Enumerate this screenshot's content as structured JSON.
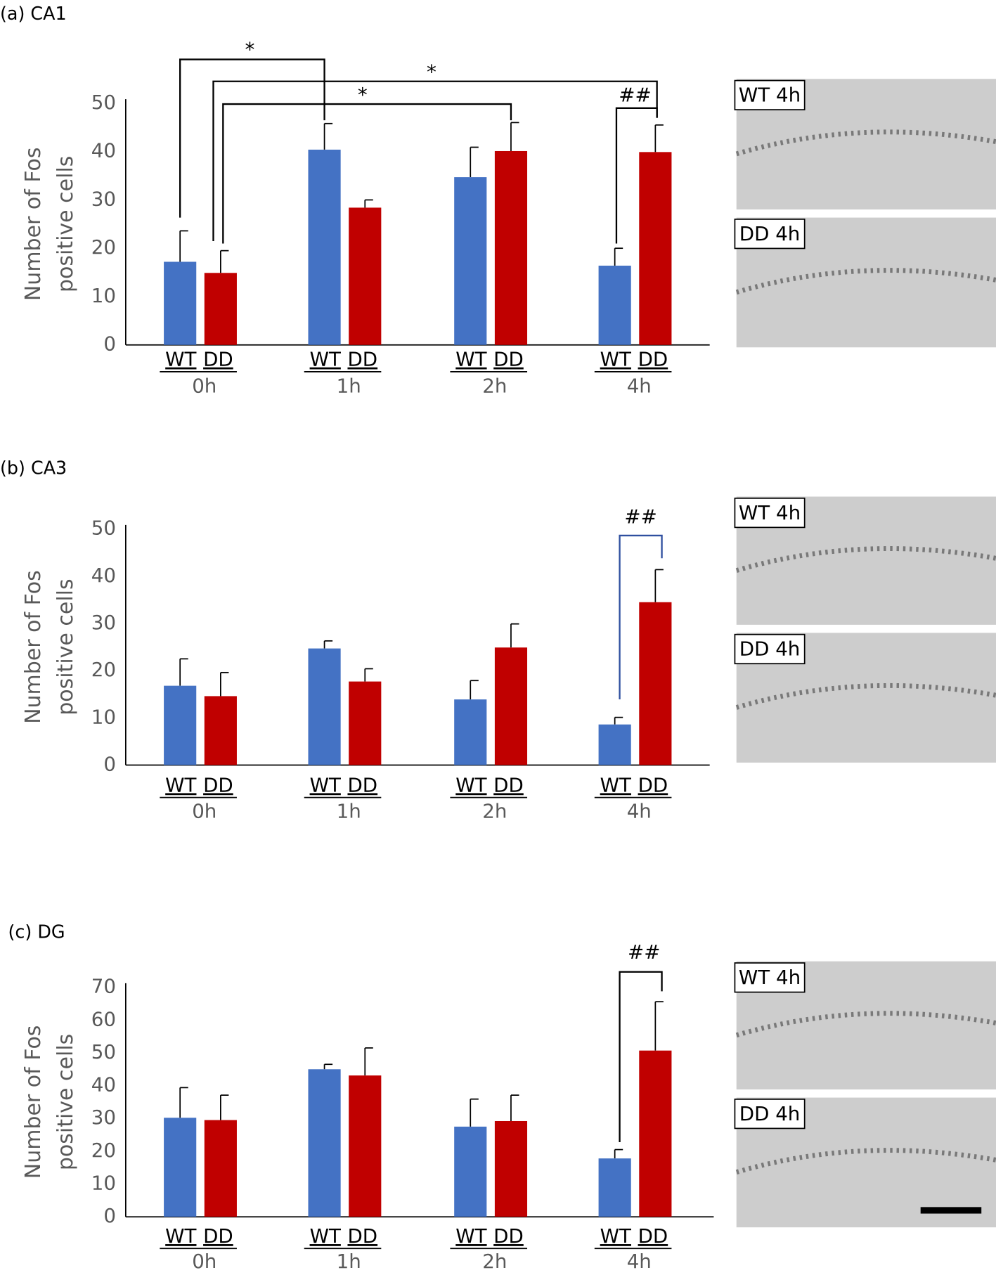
{
  "chart_data": [
    {
      "type": "bar",
      "title": "(a) CA1",
      "ylabel": [
        "Number of Fos",
        "positive cells"
      ],
      "categories": [
        "0h",
        "1h",
        "2h",
        "4h"
      ],
      "series": [
        {
          "name": "WT",
          "color": "#4472c4",
          "values": [
            17.2,
            40.4,
            34.7,
            16.4
          ],
          "errors": [
            6.4,
            5.4,
            6.2,
            3.6
          ]
        },
        {
          "name": "DD",
          "color": "#c00000",
          "values": [
            14.9,
            28.4,
            40.1,
            39.9
          ],
          "errors": [
            4.6,
            1.6,
            5.9,
            5.6
          ]
        }
      ],
      "ylim": [
        0,
        50
      ],
      "yticks": [
        0,
        10,
        20,
        30,
        40,
        50
      ],
      "annotations": [
        "*",
        "*",
        "*",
        "##"
      ],
      "image_labels": [
        "WT 4h",
        "DD 4h"
      ]
    },
    {
      "type": "bar",
      "title": "(b) CA3",
      "ylabel": [
        "Number of Fos",
        "positive cells"
      ],
      "categories": [
        "0h",
        "1h",
        "2h",
        "4h"
      ],
      "series": [
        {
          "name": "WT",
          "color": "#4472c4",
          "values": [
            16.8,
            24.7,
            13.9,
            8.6
          ],
          "errors": [
            5.7,
            1.6,
            4.0,
            1.5
          ]
        },
        {
          "name": "DD",
          "color": "#c00000",
          "values": [
            14.6,
            17.7,
            24.9,
            34.5
          ],
          "errors": [
            5.0,
            2.7,
            5.0,
            6.9
          ]
        }
      ],
      "ylim": [
        0,
        50
      ],
      "yticks": [
        0,
        10,
        20,
        30,
        40,
        50
      ],
      "annotations": [
        "##"
      ],
      "image_labels": [
        "WT 4h",
        "DD 4h"
      ]
    },
    {
      "type": "bar",
      "title": "(c) DG",
      "ylabel": [
        "Number of Fos",
        "positive cells"
      ],
      "categories": [
        "0h",
        "1h",
        "2h",
        "4h"
      ],
      "series": [
        {
          "name": "WT",
          "color": "#4472c4",
          "values": [
            30.2,
            45.0,
            27.5,
            17.8
          ],
          "errors": [
            9.2,
            1.5,
            8.4,
            2.7
          ]
        },
        {
          "name": "DD",
          "color": "#c00000",
          "values": [
            29.5,
            43.1,
            29.2,
            50.7
          ],
          "errors": [
            7.6,
            8.4,
            7.9,
            14.9
          ]
        }
      ],
      "ylim": [
        0,
        70
      ],
      "yticks": [
        0,
        10,
        20,
        30,
        40,
        50,
        60,
        70
      ],
      "annotations": [
        "##"
      ],
      "image_labels": [
        "WT 4h",
        "DD 4h"
      ]
    }
  ]
}
